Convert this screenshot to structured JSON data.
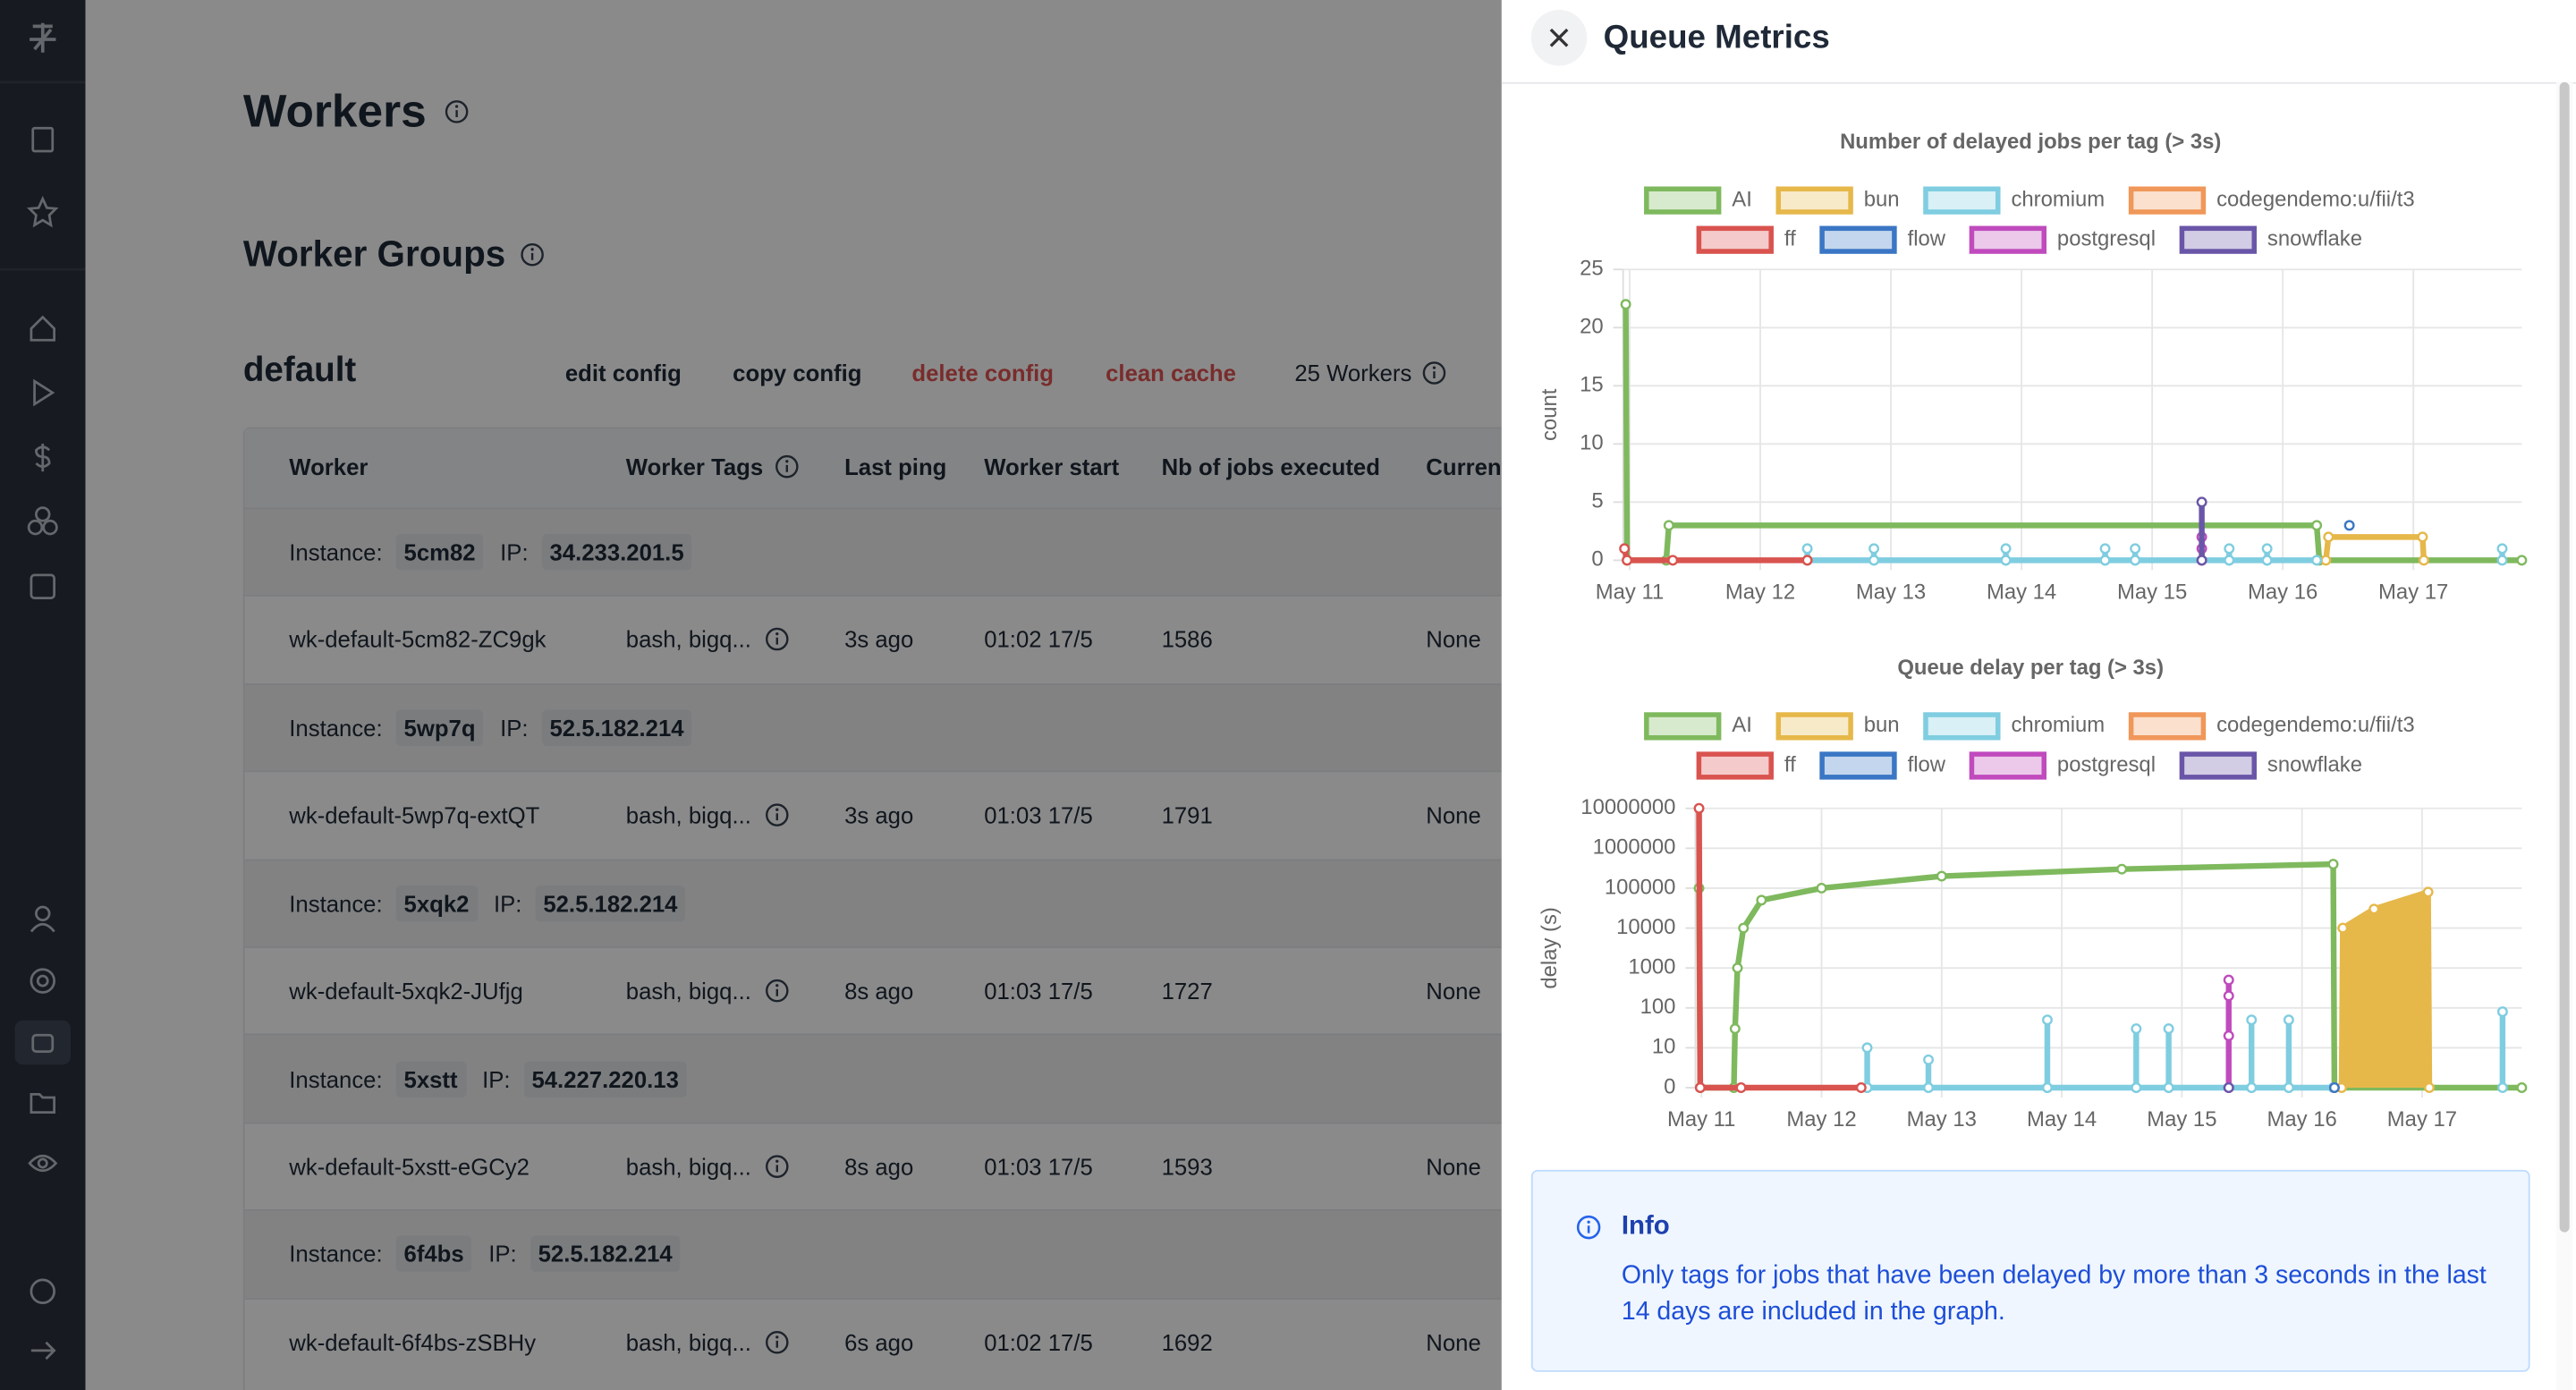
{
  "page": {
    "title": "Workers",
    "section_title": "Worker Groups",
    "group": {
      "name": "default",
      "actions": [
        "edit config",
        "copy config",
        "delete config",
        "clean cache"
      ],
      "workers_count": "25 Workers"
    }
  },
  "table": {
    "columns": [
      "Worker",
      "Worker Tags",
      "Last ping",
      "Worker start",
      "Nb of jobs executed",
      "Current"
    ],
    "instance_label": "Instance:",
    "ip_label": "IP:",
    "rows": [
      {
        "instance": "5cm82",
        "ip": "34.233.201.5",
        "worker": "wk-default-5cm82-ZC9gk",
        "tags": "bash, bigq...",
        "last_ping": "3s ago",
        "start": "01:02 17/5",
        "jobs": 1586,
        "current": "None"
      },
      {
        "instance": "5wp7q",
        "ip": "52.5.182.214",
        "worker": "wk-default-5wp7q-extQT",
        "tags": "bash, bigq...",
        "last_ping": "3s ago",
        "start": "01:03 17/5",
        "jobs": 1791,
        "current": "None"
      },
      {
        "instance": "5xqk2",
        "ip": "52.5.182.214",
        "worker": "wk-default-5xqk2-JUfjg",
        "tags": "bash, bigq...",
        "last_ping": "8s ago",
        "start": "01:03 17/5",
        "jobs": 1727,
        "current": "None"
      },
      {
        "instance": "5xstt",
        "ip": "54.227.220.13",
        "worker": "wk-default-5xstt-eGCy2",
        "tags": "bash, bigq...",
        "last_ping": "8s ago",
        "start": "01:03 17/5",
        "jobs": 1593,
        "current": "None"
      },
      {
        "instance": "6f4bs",
        "ip": "52.5.182.214",
        "worker": "wk-default-6f4bs-zSBHy",
        "tags": "bash, bigq...",
        "last_ping": "6s ago",
        "start": "01:02 17/5",
        "jobs": 1692,
        "current": "None"
      }
    ]
  },
  "drawer": {
    "title": "Queue Metrics",
    "info": {
      "title": "Info",
      "text": "Only tags for jobs that have been delayed by more than 3 seconds in the last 14 days are included in the graph."
    }
  },
  "chart_data": [
    {
      "type": "line",
      "title": "Number of delayed jobs per tag (> 3s)",
      "y_label": "count",
      "log_scale": false,
      "grid": true,
      "xlim": [
        10.95,
        17.83
      ],
      "xticks": [
        {
          "value": 11,
          "label": "May 11"
        },
        {
          "value": 12,
          "label": "May 12"
        },
        {
          "value": 13,
          "label": "May 13"
        },
        {
          "value": 14,
          "label": "May 14"
        },
        {
          "value": 15,
          "label": "May 15"
        },
        {
          "value": 16,
          "label": "May 16"
        },
        {
          "value": 17,
          "label": "May 17"
        }
      ],
      "ylim": [
        0,
        25
      ],
      "yticks": [
        0,
        5,
        10,
        15,
        20,
        25
      ],
      "series": [
        {
          "name": "AI",
          "color": "#7fb95e",
          "x": [
            10.97,
            10.98,
            11.28,
            11.3,
            16.26,
            16.28,
            17.83
          ],
          "values": [
            22,
            0,
            0,
            3,
            3,
            0,
            0
          ]
        },
        {
          "name": "bun",
          "color": "#e6b84a",
          "x": [
            16.33,
            16.35,
            17.07,
            17.08
          ],
          "values": [
            0,
            2,
            2,
            0
          ]
        },
        {
          "name": "chromium",
          "color": "#7fcde0",
          "x": [
            12.36,
            12.36,
            12.36,
            12.87,
            12.87,
            12.87,
            13.88,
            13.88,
            13.88,
            14.64,
            14.64,
            14.64,
            14.87,
            14.87,
            14.87,
            15.59,
            15.59,
            15.59,
            15.88,
            15.88,
            15.88,
            16.26,
            null,
            17.68,
            17.68
          ],
          "values": [
            0,
            1,
            0,
            0,
            1,
            0,
            0,
            1,
            0,
            0,
            1,
            0,
            0,
            1,
            0,
            0,
            1,
            0,
            0,
            1,
            0,
            0,
            null,
            0,
            1
          ]
        },
        {
          "name": "codegendemo:u/fii/t3",
          "color": "#f0975a",
          "x": [
            15.38
          ],
          "values": [
            0
          ]
        },
        {
          "name": "ff",
          "color": "#d9534f",
          "x": [
            10.96,
            10.98,
            11.33,
            12.36
          ],
          "values": [
            1,
            0,
            0,
            0
          ]
        },
        {
          "name": "flow",
          "color": "#3a76c4",
          "x": [
            16.51
          ],
          "values": [
            3
          ]
        },
        {
          "name": "postgresql",
          "color": "#c04bbd",
          "x": [
            15.38,
            15.38,
            15.38
          ],
          "values": [
            0,
            1,
            2
          ]
        },
        {
          "name": "snowflake",
          "color": "#6a56a8",
          "x": [
            15.38,
            15.38
          ],
          "values": [
            0,
            5
          ]
        }
      ]
    },
    {
      "type": "line",
      "title": "Queue delay per tag (> 3s)",
      "y_label": "delay (s)",
      "log_scale": true,
      "grid": true,
      "xlim": [
        10.95,
        17.83
      ],
      "xticks": [
        {
          "value": 11,
          "label": "May 11"
        },
        {
          "value": 12,
          "label": "May 12"
        },
        {
          "value": 13,
          "label": "May 13"
        },
        {
          "value": 14,
          "label": "May 14"
        },
        {
          "value": 15,
          "label": "May 15"
        },
        {
          "value": 16,
          "label": "May 16"
        },
        {
          "value": 17,
          "label": "May 17"
        }
      ],
      "ylim": [
        0,
        10000000
      ],
      "yticks": [
        0,
        10,
        100,
        1000,
        10000,
        100000,
        1000000,
        10000000
      ],
      "series": [
        {
          "name": "AI",
          "color": "#7fb95e",
          "x": [
            10.98,
            10.99,
            11.27,
            11.28,
            11.3,
            11.35,
            11.5,
            12,
            13,
            14.5,
            16.26,
            16.27,
            17.83
          ],
          "values": [
            100000,
            0,
            0,
            30,
            1000,
            10000,
            50000,
            100000,
            200000,
            300000,
            400000,
            0,
            0
          ]
        },
        {
          "name": "bun",
          "color": "#e6b84a",
          "fill": true,
          "x": [
            16.33,
            16.34,
            16.6,
            17.05,
            17.06
          ],
          "values": [
            0,
            10000,
            30000,
            80000,
            0
          ]
        },
        {
          "name": "chromium",
          "color": "#7fcde0",
          "x": [
            12.38,
            12.38,
            12.38,
            12.89,
            12.89,
            12.89,
            13.88,
            13.88,
            13.88,
            14.62,
            14.62,
            14.62,
            14.89,
            14.89,
            14.89,
            15.58,
            15.58,
            15.58,
            15.89,
            15.89,
            15.89,
            16.26,
            null,
            17.67,
            17.67
          ],
          "values": [
            0,
            10,
            0,
            0,
            5,
            0,
            0,
            50,
            0,
            0,
            30,
            0,
            0,
            30,
            0,
            0,
            50,
            0,
            0,
            50,
            0,
            0,
            null,
            0,
            80
          ]
        },
        {
          "name": "codegendemo:u/fii/t3",
          "color": "#f0975a",
          "x": [
            16.27
          ],
          "values": [
            0
          ]
        },
        {
          "name": "ff",
          "color": "#d9534f",
          "x": [
            10.98,
            10.99,
            11.33,
            12.33
          ],
          "values": [
            10000000,
            0,
            0,
            0
          ]
        },
        {
          "name": "flow",
          "color": "#3a76c4",
          "x": [
            16.27
          ],
          "values": [
            0
          ]
        },
        {
          "name": "postgresql",
          "color": "#c04bbd",
          "x": [
            15.39,
            15.39,
            15.39,
            15.39
          ],
          "values": [
            0,
            20,
            200,
            500
          ]
        },
        {
          "name": "snowflake",
          "color": "#6a56a8",
          "x": [
            15.39
          ],
          "values": [
            0
          ]
        }
      ]
    }
  ]
}
